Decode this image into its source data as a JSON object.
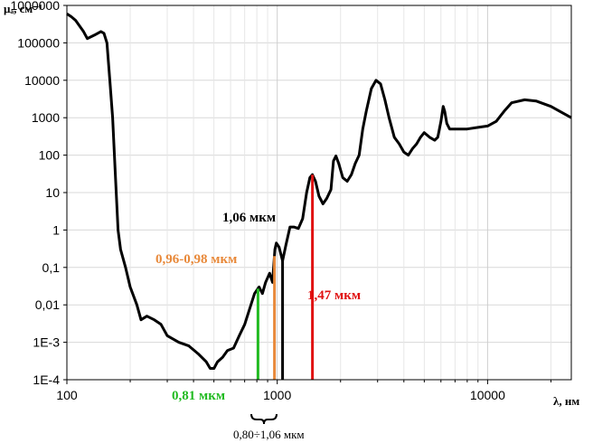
{
  "chart_data": {
    "type": "line",
    "title": "",
    "ylabel": "μₐ, см⁻¹",
    "xlabel": "λ, нм",
    "x_scale": "log",
    "y_scale": "log",
    "xlim": [
      100,
      25000
    ],
    "ylim": [
      0.0001,
      1000000
    ],
    "grid": true,
    "x_ticks": [
      {
        "value": 100,
        "label": "100"
      },
      {
        "value": 1000,
        "label": "1000"
      },
      {
        "value": 10000,
        "label": "10000"
      }
    ],
    "y_ticks": [
      {
        "value": 1000000,
        "label": "1000000"
      },
      {
        "value": 100000,
        "label": "100000"
      },
      {
        "value": 10000,
        "label": "10000"
      },
      {
        "value": 1000,
        "label": "1000"
      },
      {
        "value": 100,
        "label": "100"
      },
      {
        "value": 10,
        "label": "10"
      },
      {
        "value": 1,
        "label": "1"
      },
      {
        "value": 0.1,
        "label": "0,1"
      },
      {
        "value": 0.01,
        "label": "0,01"
      },
      {
        "value": 0.001,
        "label": "1E-3"
      },
      {
        "value": 0.0001,
        "label": "1E-4"
      }
    ],
    "series": [
      {
        "color": "#000000",
        "points": [
          [
            100,
            600000
          ],
          [
            105,
            500000
          ],
          [
            110,
            400000
          ],
          [
            120,
            200000
          ],
          [
            125,
            130000
          ],
          [
            135,
            160000
          ],
          [
            145,
            200000
          ],
          [
            150,
            180000
          ],
          [
            155,
            100000
          ],
          [
            160,
            10000
          ],
          [
            165,
            1000
          ],
          [
            170,
            30
          ],
          [
            175,
            1
          ],
          [
            180,
            0.3
          ],
          [
            190,
            0.1
          ],
          [
            200,
            0.03
          ],
          [
            215,
            0.01
          ],
          [
            225,
            0.004
          ],
          [
            240,
            0.005
          ],
          [
            260,
            0.004
          ],
          [
            280,
            0.003
          ],
          [
            300,
            0.0015
          ],
          [
            340,
            0.001
          ],
          [
            380,
            0.0008
          ],
          [
            420,
            0.0005
          ],
          [
            460,
            0.0003
          ],
          [
            480,
            0.0002
          ],
          [
            500,
            0.0002
          ],
          [
            520,
            0.0003
          ],
          [
            550,
            0.0004
          ],
          [
            580,
            0.0006
          ],
          [
            620,
            0.0007
          ],
          [
            660,
            0.0015
          ],
          [
            700,
            0.003
          ],
          [
            740,
            0.008
          ],
          [
            780,
            0.02
          ],
          [
            820,
            0.03
          ],
          [
            850,
            0.02
          ],
          [
            880,
            0.04
          ],
          [
            920,
            0.07
          ],
          [
            950,
            0.04
          ],
          [
            975,
            0.3
          ],
          [
            990,
            0.45
          ],
          [
            1020,
            0.35
          ],
          [
            1060,
            0.15
          ],
          [
            1100,
            0.4
          ],
          [
            1150,
            1.2
          ],
          [
            1200,
            1.2
          ],
          [
            1260,
            1.1
          ],
          [
            1320,
            2
          ],
          [
            1380,
            10
          ],
          [
            1430,
            25
          ],
          [
            1470,
            30
          ],
          [
            1520,
            20
          ],
          [
            1580,
            8
          ],
          [
            1650,
            5
          ],
          [
            1720,
            7
          ],
          [
            1800,
            12
          ],
          [
            1850,
            70
          ],
          [
            1900,
            95
          ],
          [
            1960,
            60
          ],
          [
            2050,
            25
          ],
          [
            2150,
            20
          ],
          [
            2250,
            30
          ],
          [
            2350,
            60
          ],
          [
            2450,
            100
          ],
          [
            2550,
            500
          ],
          [
            2650,
            1500
          ],
          [
            2800,
            6000
          ],
          [
            2950,
            10000
          ],
          [
            3100,
            8000
          ],
          [
            3250,
            3000
          ],
          [
            3400,
            1000
          ],
          [
            3600,
            300
          ],
          [
            3800,
            200
          ],
          [
            4000,
            120
          ],
          [
            4200,
            100
          ],
          [
            4400,
            150
          ],
          [
            4600,
            200
          ],
          [
            4800,
            300
          ],
          [
            5000,
            400
          ],
          [
            5300,
            300
          ],
          [
            5600,
            250
          ],
          [
            5800,
            300
          ],
          [
            6000,
            800
          ],
          [
            6150,
            2000
          ],
          [
            6250,
            1500
          ],
          [
            6400,
            700
          ],
          [
            6600,
            500
          ],
          [
            7000,
            500
          ],
          [
            8000,
            500
          ],
          [
            9000,
            550
          ],
          [
            10000,
            600
          ],
          [
            11000,
            800
          ],
          [
            12000,
            1500
          ],
          [
            13000,
            2500
          ],
          [
            15000,
            3000
          ],
          [
            17000,
            2800
          ],
          [
            20000,
            2000
          ],
          [
            25000,
            1000
          ]
        ]
      }
    ],
    "markers": [
      {
        "label": "0,81 мкм",
        "wavelength": 810,
        "color": "#22bb22"
      },
      {
        "label": "0,96-0,98 мкм",
        "wavelength": 970,
        "color": "#e8893a"
      },
      {
        "label": "1,06 мкм",
        "wavelength": 1060,
        "color": "#000000"
      },
      {
        "label": "1,47 мкм",
        "wavelength": 1470,
        "color": "#e01010"
      }
    ],
    "range_annotation": "0,80÷1,06 мкм"
  }
}
